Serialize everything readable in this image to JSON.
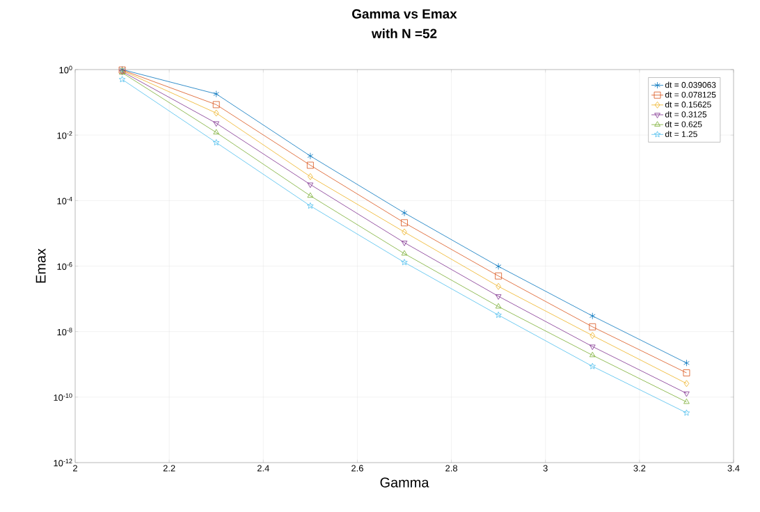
{
  "chart_data": {
    "type": "line",
    "title": "Gamma vs Emax",
    "subtitle": "with N =52",
    "xlabel": "Gamma",
    "ylabel": "Emax",
    "x": [
      2.1,
      2.3,
      2.5,
      2.7,
      2.9,
      3.1,
      3.3
    ],
    "series": [
      {
        "name": "dt = 0.039063",
        "color": "#0072bd",
        "marker": "cross",
        "values": [
          1,
          0.18,
          0.0023,
          4.2e-05,
          9.8e-07,
          3e-08,
          1.1e-09
        ]
      },
      {
        "name": "dt = 0.078125",
        "color": "#d95319",
        "marker": "square",
        "values": [
          0.97,
          0.085,
          0.0012,
          2.1e-05,
          5e-07,
          1.4e-08,
          5.5e-10
        ]
      },
      {
        "name": "dt = 0.15625",
        "color": "#edb120",
        "marker": "diamond",
        "values": [
          0.93,
          0.047,
          0.00054,
          1.1e-05,
          2.4e-07,
          7.6e-09,
          2.6e-10
        ]
      },
      {
        "name": "dt = 0.3125",
        "color": "#7e2f8e",
        "marker": "triangle-down",
        "values": [
          0.87,
          0.023,
          0.00031,
          5.2e-06,
          1.2e-07,
          3.5e-09,
          1.3e-10
        ]
      },
      {
        "name": "dt = 0.625",
        "color": "#77ac30",
        "marker": "triangle",
        "values": [
          0.8,
          0.012,
          0.00014,
          2.4e-06,
          5.8e-08,
          1.9e-09,
          7.1e-11
        ]
      },
      {
        "name": "dt = 1.25",
        "color": "#4dbeee",
        "marker": "star",
        "values": [
          0.5,
          0.0059,
          6.9e-05,
          1.3e-06,
          3.2e-08,
          8.7e-10,
          3.3e-11
        ]
      }
    ],
    "log": "y",
    "xlim": [
      2,
      3.4
    ],
    "ylim": [
      1e-12,
      1
    ],
    "xticks": [
      2,
      2.2,
      2.4,
      2.6,
      2.8,
      3,
      3.2,
      3.4
    ],
    "yticks": [
      {
        "value": 1e-12,
        "label": "10$^{-12}$"
      },
      {
        "value": 1e-10,
        "label": "10$^{-10}$"
      },
      {
        "value": 1e-08,
        "label": "10$^{-8}$"
      },
      {
        "value": 1e-06,
        "label": "10$^{-6}$"
      },
      {
        "value": 0.0001,
        "label": "10$^{-4}$"
      },
      {
        "value": 0.01,
        "label": "10$^{-2}$"
      },
      {
        "value": 1,
        "label": "10$^{0}$"
      }
    ],
    "grid": true,
    "legend": "top right",
    "line_style": "solid"
  }
}
